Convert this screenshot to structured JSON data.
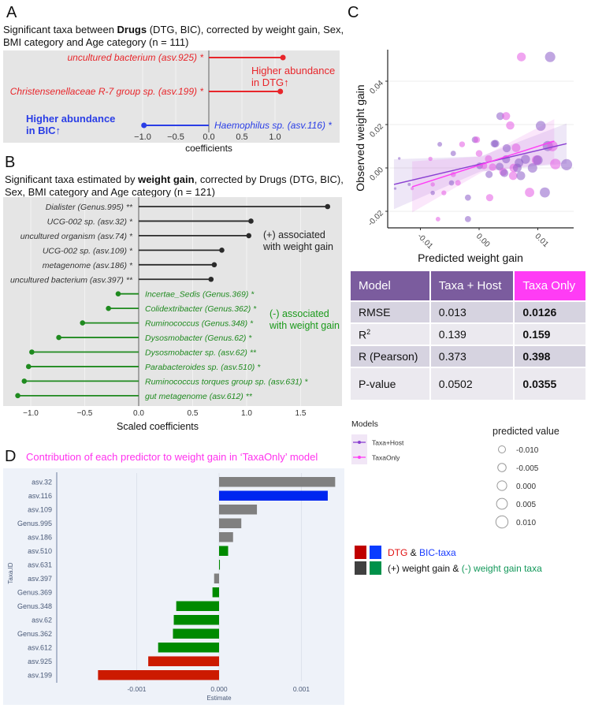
{
  "panel_a": {
    "label": "A",
    "title_pre": "Significant taxa between ",
    "title_bold": "Drugs",
    "title_post": " (DTG, BIC), corrected by weight gain, Sex,",
    "title_line2": "BMI category and Age category (n = 111)",
    "xlabel": "coefficients",
    "ticks": [
      -1,
      -0.5,
      0,
      0.5,
      1
    ],
    "tick_labels": [
      "−1.0",
      "−0.5",
      "0.0",
      "0.5",
      "1.0"
    ],
    "taxa": [
      {
        "name": "uncultured bacterium (asv.925) *",
        "value": 1.12,
        "group": "DTG"
      },
      {
        "name": "Christensenellaceae R-7 group sp. (asv.199) *",
        "value": 1.08,
        "group": "DTG"
      },
      {
        "name": "Haemophilus sp. (asv.116) *",
        "value": -0.98,
        "group": "BIC"
      }
    ],
    "annot_dtg": [
      "Higher abundance",
      "in DTG↑"
    ],
    "annot_bic": [
      "Higher abundance",
      "in BIC↑"
    ],
    "colors": {
      "DTG": "#e8262b",
      "BIC": "#2a3ee6"
    }
  },
  "panel_b": {
    "label": "B",
    "title_pre": "Significant taxa estimated by ",
    "title_bold": "weight gain",
    "title_post": ", corrected by Drugs (DTG, BIC),",
    "title_line2": "Sex, BMI category and Age category (n = 121)",
    "xlabel": "Scaled coefficients",
    "ticks": [
      -1,
      -0.5,
      0,
      0.5,
      1,
      1.5
    ],
    "tick_labels": [
      "−1.0",
      "−0.5",
      "0.0",
      "0.5",
      "1.0",
      "1.5"
    ],
    "taxa": [
      {
        "name": "Dialister (Genus.995) **",
        "value": 1.75
      },
      {
        "name": "UCG-002 sp. (asv.32) *",
        "value": 1.04
      },
      {
        "name": "uncultured organism (asv.74) *",
        "value": 1.02
      },
      {
        "name": "UCG-002 sp. (asv.109) *",
        "value": 0.77
      },
      {
        "name": "metagenome (asv.186) *",
        "value": 0.7
      },
      {
        "name": "uncultured bacterium (asv.397) **",
        "value": 0.67
      },
      {
        "name": "Incertae_Sedis (Genus.369) *",
        "value": -0.19
      },
      {
        "name": "Colidextribacter (Genus.362) *",
        "value": -0.28
      },
      {
        "name": "Ruminococcus (Genus.348) *",
        "value": -0.52
      },
      {
        "name": "Dysosmobacter (Genus.62) *",
        "value": -0.74
      },
      {
        "name": "Dysosmobacter sp. (asv.62) **",
        "value": -0.99
      },
      {
        "name": "Parabacteroides sp. (asv.510) *",
        "value": -1.02
      },
      {
        "name": "Ruminococcus torques group sp. (asv.631) *",
        "value": -1.06
      },
      {
        "name": "gut metagenome (asv.612) **",
        "value": -1.12
      }
    ],
    "annot_pos": [
      "(+) associated",
      "with weight gain"
    ],
    "annot_neg": [
      "(-) associated",
      "with weight gain"
    ],
    "colors": {
      "pos": "#2b2b2b",
      "neg": "#1f8a1f"
    }
  },
  "panel_c": {
    "label": "C",
    "xlabel": "Predicted weight gain",
    "ylabel": "Observed weight gain",
    "x_ticks": [
      -0.01,
      0,
      0.01
    ],
    "x_tick_labels": [
      "-0.01",
      "0.00",
      "0.01"
    ],
    "y_ticks": [
      0.04,
      0.02,
      0,
      -0.02
    ],
    "y_tick_labels": [
      "0.04",
      "0.02",
      "0.00",
      "-0.02"
    ],
    "colors": {
      "TH": "#8c5cc8",
      "TO": "#e35be3",
      "TH_line": "#8a3fd1",
      "TO_line": "#ff3df5"
    },
    "fits": {
      "TH": {
        "x": [
          -0.0145,
          0.0149
        ],
        "y": [
          -0.0076,
          0.0112
        ],
        "band_lo": [
          -0.019,
          0.002
        ],
        "band_hi": [
          0.004,
          0.0205
        ]
      },
      "TO": {
        "x": [
          -0.0114,
          0.0128
        ],
        "y": [
          -0.0087,
          0.0124
        ],
        "band_lo": [
          -0.0205,
          0.002
        ],
        "band_hi": [
          0.003,
          0.0225
        ]
      }
    },
    "points": [
      [
        0.0072,
        0.0512,
        "TO"
      ],
      [
        0.0121,
        0.0512,
        "TH"
      ],
      [
        0.0036,
        0.0239,
        "TH"
      ],
      [
        0.0046,
        0.0239,
        "TO"
      ],
      [
        0.0053,
        0.0196,
        "TO"
      ],
      [
        0.0105,
        0.0194,
        "TH"
      ],
      [
        -0.0007,
        0.013,
        "TH"
      ],
      [
        -0.0004,
        0.013,
        "TO"
      ],
      [
        0.0026,
        0.0112,
        "TH"
      ],
      [
        0.0028,
        0.0112,
        "TH"
      ],
      [
        0.0047,
        0.0091,
        "TH"
      ],
      [
        0.0063,
        0.0093,
        "TO"
      ],
      [
        -0.0067,
        0.0109,
        "TH"
      ],
      [
        -0.0029,
        0.0109,
        "TO"
      ],
      [
        -0.0044,
        0.0067,
        "TH"
      ],
      [
        0.0,
        0.0067,
        "TO"
      ],
      [
        -0.0083,
        0.0042,
        "TO"
      ],
      [
        -0.0136,
        0.0044,
        "TH"
      ],
      [
        0.0016,
        0.0042,
        "TO"
      ],
      [
        0.0046,
        0.004,
        "TH"
      ],
      [
        0.0068,
        0.0024,
        "TH"
      ],
      [
        0.0079,
        0.004,
        "TH"
      ],
      [
        0.0098,
        0.0036,
        "TO"
      ],
      [
        0.01,
        0.0036,
        "TH"
      ],
      [
        0.0117,
        0.0101,
        "TH"
      ],
      [
        0.0125,
        0.0101,
        "TO"
      ],
      [
        0.013,
        0.0018,
        "TO"
      ],
      [
        0.0149,
        0.0015,
        "TH"
      ],
      [
        0.0001,
        0.001,
        "TH"
      ],
      [
        0.0008,
        0.001,
        "TO"
      ],
      [
        0.0023,
        0.0004,
        "TO"
      ],
      [
        0.0035,
        0.0006,
        "TH"
      ],
      [
        0.0059,
        0.0,
        "TO"
      ],
      [
        0.0065,
        0.0,
        "TH"
      ],
      [
        0.0091,
        0.0,
        "TH"
      ],
      [
        0.0017,
        -0.003,
        "TH"
      ],
      [
        0.0041,
        -0.0018,
        "TO"
      ],
      [
        0.0043,
        -0.0024,
        "TH"
      ],
      [
        0.0058,
        -0.0036,
        "TO"
      ],
      [
        0.0071,
        -0.0036,
        "TH"
      ],
      [
        -0.0044,
        -0.003,
        "TO"
      ],
      [
        -0.0047,
        -0.0069,
        "TH"
      ],
      [
        -0.0036,
        -0.0069,
        "TO"
      ],
      [
        -0.0079,
        -0.0076,
        "TO"
      ],
      [
        -0.0119,
        -0.0076,
        "TH"
      ],
      [
        -0.0114,
        -0.0095,
        "TO"
      ],
      [
        -0.0143,
        -0.0095,
        "TH"
      ],
      [
        -0.0079,
        -0.0115,
        "TH"
      ],
      [
        -0.006,
        -0.0115,
        "TO"
      ],
      [
        -0.0019,
        -0.0137,
        "TH"
      ],
      [
        0.0018,
        -0.0137,
        "TO"
      ],
      [
        0.0086,
        -0.0113,
        "TO"
      ],
      [
        0.0112,
        -0.0113,
        "TH"
      ],
      [
        -0.007,
        -0.0236,
        "TO"
      ],
      [
        -0.0019,
        -0.0236,
        "TH"
      ]
    ],
    "legend_models_title": "Models",
    "legend_models": [
      "Taxa+Host",
      "TaxaOnly"
    ],
    "legend_size_title": "predicted value",
    "legend_sizes": [
      "-0.010",
      "-0.005",
      "0.000",
      "0.005",
      "0.010"
    ],
    "table": {
      "headers": [
        "Model",
        "Taxa + Host",
        "Taxa Only"
      ],
      "rows": [
        {
          "metric": "RMSE",
          "sup": "",
          "taxa_host": "0.013",
          "taxa_only": "0.0126"
        },
        {
          "metric": "R",
          "sup": "2",
          "taxa_host": "0.139",
          "taxa_only": "0.159"
        },
        {
          "metric": "R (Pearson)",
          "sup": "",
          "taxa_host": "0.373",
          "taxa_only": "0.398"
        },
        {
          "metric": "P-value",
          "sup": "",
          "taxa_host": "0.0502",
          "taxa_only": "0.0355"
        }
      ]
    }
  },
  "color_legend": {
    "line1": {
      "a": "DTG",
      "amp": " & ",
      "b": "BIC-taxa"
    },
    "line2": {
      "a": "(+) weight gain & ",
      "b": "(-) weight gain taxa"
    },
    "colors": {
      "dtg": "#c00000",
      "bic": "#0a3cff",
      "pos": "#404040",
      "neg": "#00914a"
    }
  },
  "chart_data": [
    {
      "type": "bar",
      "panel": "D",
      "title": "Contribution of each predictor to weight gain in ‘TaxaOnly’ model",
      "xlabel": "Estimate",
      "ylabel": "Taxa.ID",
      "x_ticks": [
        -0.001,
        0,
        0.001
      ],
      "x_tick_labels": [
        "-0.001",
        "0.000",
        "0.001"
      ],
      "categories": [
        "asv.32",
        "asv.116",
        "asv.109",
        "Genus.995",
        "asv.186",
        "asv.510",
        "asv.631",
        "asv.397",
        "Genus.369",
        "Genus.348",
        "asv.62",
        "Genus.362",
        "asv.612",
        "asv.925",
        "asv.199"
      ],
      "values": [
        0.00141,
        0.00132,
        0.00046,
        0.00027,
        0.00017,
        0.00011,
        1e-05,
        -6e-05,
        -8e-05,
        -0.00052,
        -0.00055,
        -0.00056,
        -0.00074,
        -0.00086,
        -0.00147
      ],
      "groups": [
        "pos",
        "BIC",
        "pos",
        "pos",
        "pos",
        "neg",
        "neg",
        "pos",
        "neg",
        "neg",
        "neg",
        "neg",
        "neg",
        "DTG",
        "DTG"
      ],
      "colors": {
        "pos": "#808080",
        "BIC": "#0026f0",
        "neg": "#008a00",
        "DTG": "#cc1a00"
      },
      "title_color": "#ff33ee"
    }
  ],
  "panel_d": {
    "label": "D"
  }
}
